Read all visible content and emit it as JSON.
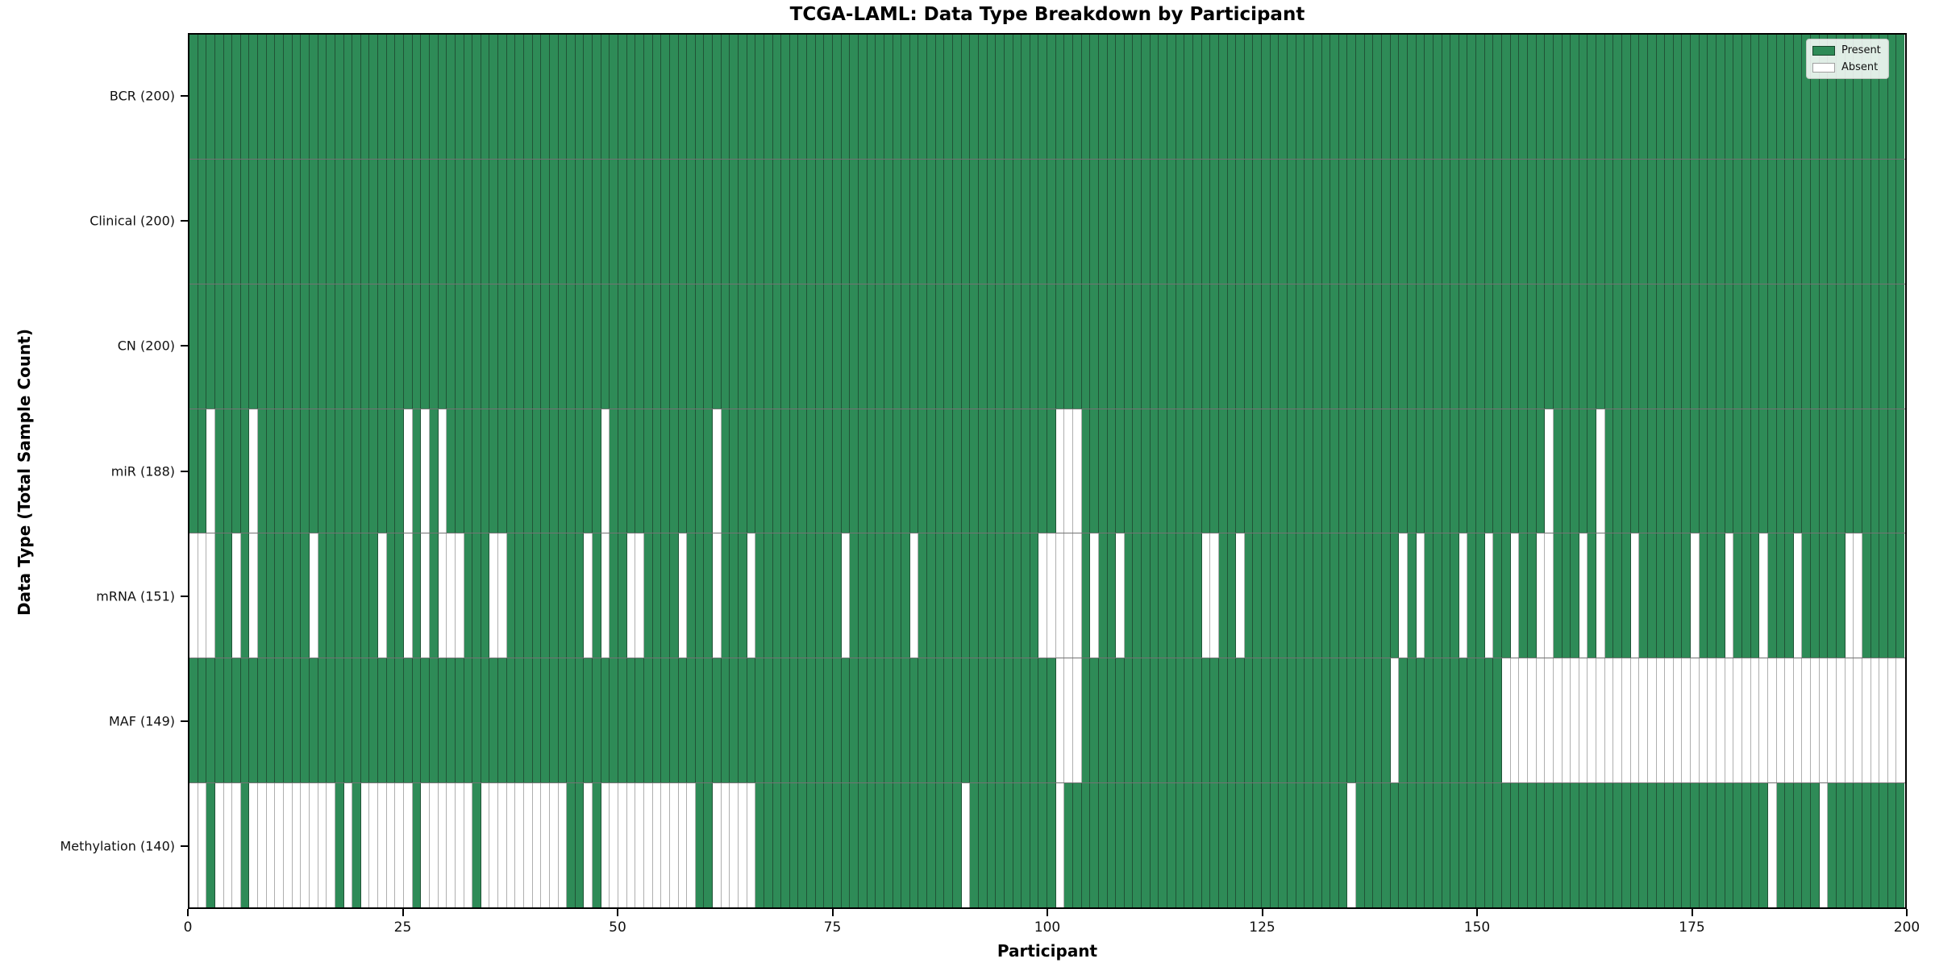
{
  "title": "TCGA-LAML: Data Type Breakdown by Participant",
  "legend": {
    "present_label": "Present",
    "absent_label": "Absent"
  },
  "chart_data": {
    "type": "heatmap",
    "title": "TCGA-LAML: Data Type Breakdown by Participant",
    "xlabel": "Participant",
    "ylabel": "Data Type (Total Sample Count)",
    "x_range": [
      0,
      200
    ],
    "n_participants": 200,
    "x_ticks": [
      0,
      25,
      50,
      75,
      100,
      125,
      150,
      175,
      200
    ],
    "grid": false,
    "legend_position": "upper right",
    "colors": {
      "present": "#2e8b57",
      "absent": "#ffffff"
    },
    "legend": [
      {
        "label": "Present",
        "color": "#2e8b57"
      },
      {
        "label": "Absent",
        "color": "#ffffff"
      }
    ],
    "rows": [
      {
        "name": "BCR",
        "label": "BCR (200)",
        "total": 200,
        "absent": []
      },
      {
        "name": "Clinical",
        "label": "Clinical (200)",
        "total": 200,
        "absent": []
      },
      {
        "name": "CN",
        "label": "CN (200)",
        "total": 200,
        "absent": []
      },
      {
        "name": "miR",
        "label": "miR (188)",
        "total": 188,
        "absent": [
          2,
          7,
          25,
          27,
          29,
          48,
          61,
          101,
          102,
          103,
          158,
          164
        ]
      },
      {
        "name": "mRNA",
        "label": "mRNA (151)",
        "total": 151,
        "absent": [
          0,
          1,
          2,
          5,
          7,
          14,
          22,
          25,
          27,
          29,
          30,
          31,
          35,
          36,
          46,
          48,
          51,
          52,
          57,
          61,
          65,
          76,
          84,
          99,
          100,
          101,
          102,
          103,
          105,
          108,
          118,
          119,
          122,
          141,
          143,
          148,
          151,
          154,
          157,
          158,
          162,
          164,
          168,
          175,
          179,
          183,
          187,
          193,
          194
        ]
      },
      {
        "name": "MAF",
        "label": "MAF (149)",
        "total": 149,
        "absent": [
          101,
          102,
          103,
          140,
          153,
          154,
          155,
          156,
          157,
          158,
          159,
          160,
          161,
          162,
          163,
          164,
          165,
          166,
          167,
          168,
          169,
          170,
          171,
          172,
          173,
          174,
          175,
          176,
          177,
          178,
          179,
          180,
          181,
          182,
          183,
          184,
          185,
          186,
          187,
          188,
          189,
          190,
          191,
          192,
          193,
          194,
          195,
          196,
          197,
          198,
          199
        ]
      },
      {
        "name": "Methylation",
        "label": "Methylation (140)",
        "total": 140,
        "absent": [
          0,
          1,
          3,
          4,
          5,
          7,
          8,
          9,
          10,
          11,
          12,
          13,
          14,
          15,
          16,
          18,
          20,
          21,
          22,
          23,
          24,
          25,
          27,
          28,
          29,
          30,
          31,
          32,
          34,
          35,
          36,
          37,
          38,
          39,
          40,
          41,
          42,
          43,
          46,
          48,
          49,
          50,
          51,
          52,
          53,
          54,
          55,
          56,
          57,
          58,
          61,
          62,
          63,
          64,
          65,
          90,
          101,
          135,
          184,
          190
        ]
      }
    ]
  }
}
